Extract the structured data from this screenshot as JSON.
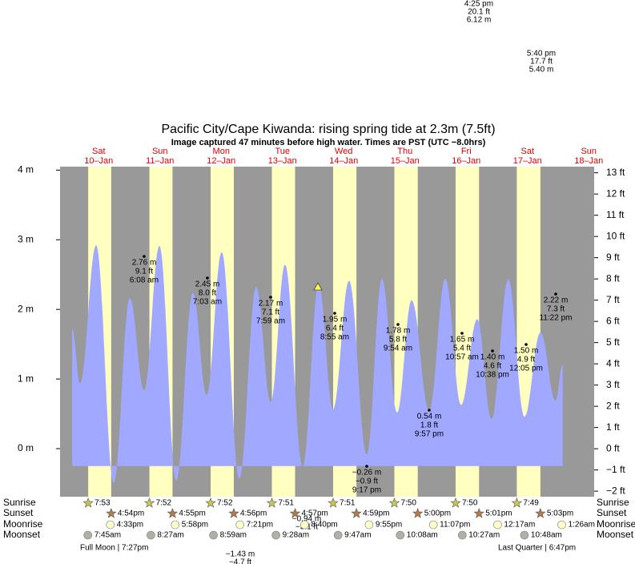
{
  "chart_data": {
    "type": "tide",
    "title": "Pacific City/Cape Kiwanda: rising  spring tide at 2.3m (7.5ft)",
    "subtitle": "Image captured 47 minutes before high water. Times are PST (UTC −8.0hrs)",
    "days": [
      "Sat",
      "Sun",
      "Mon",
      "Tue",
      "Wed",
      "Thu",
      "Fri",
      "Sat",
      "Sun"
    ],
    "dates": [
      "10–Jan",
      "11–Jan",
      "12–Jan",
      "13–Jan",
      "14–Jan",
      "15–Jan",
      "16–Jan",
      "17–Jan",
      "18–Jan"
    ],
    "ylim": [
      -0.69,
      4.05
    ],
    "yticks": [
      {
        "value": 4,
        "label": "4 m"
      },
      {
        "value": 3,
        "label": "3 m"
      },
      {
        "value": 2,
        "label": "2 m"
      },
      {
        "value": 1,
        "label": "1 m"
      },
      {
        "value": 0,
        "label": "0 m"
      }
    ],
    "y2lim": [
      -2.26,
      13.29
    ],
    "y2ticks": [
      {
        "value": 13,
        "label": "13 ft"
      },
      {
        "value": 12,
        "label": "12 ft"
      },
      {
        "value": 11,
        "label": "11 ft"
      },
      {
        "value": 10,
        "label": "10 ft"
      },
      {
        "value": 9,
        "label": "9 ft"
      },
      {
        "value": 8,
        "label": "8 ft"
      },
      {
        "value": 7,
        "label": "7 ft"
      },
      {
        "value": 6,
        "label": "6 ft"
      },
      {
        "value": 5,
        "label": "5 ft"
      },
      {
        "value": 4,
        "label": "4 ft"
      },
      {
        "value": 3,
        "label": "3 ft"
      },
      {
        "value": 2,
        "label": "2 ft"
      },
      {
        "value": 1,
        "label": "1 ft"
      },
      {
        "value": 0,
        "label": "0 ft"
      },
      {
        "value": -1,
        "label": "−1 ft"
      },
      {
        "value": -2,
        "label": "−2 ft"
      }
    ],
    "tide_curve": {
      "color": "#a0a8ff",
      "hours": [
        1.6,
        4.7,
        11.0,
        17.9,
        24.2,
        29.8,
        35.8,
        42.4,
        48.9,
        54.3,
        60.2,
        67.1,
        73.7,
        79.4,
        85.0,
        91.9,
        98.2,
        103.8,
        110.1,
        117.0,
        123.0,
        128.9,
        134.6,
        141.5,
        147.8,
        154.0,
        160.3,
        165.9,
        172.5,
        178.8,
        185.1,
        191.0,
        193.8
      ],
      "heights": [
        1.72,
        0.94,
        2.92,
        -0.49,
        2.16,
        0.84,
        2.91,
        -0.46,
        2.24,
        0.77,
        2.82,
        -0.43,
        2.32,
        0.67,
        2.64,
        -0.25,
        2.36,
        0.57,
        2.41,
        -0.08,
        2.44,
        0.52,
        2.13,
        0.55,
        2.44,
        0.63,
        1.86,
        0.43,
        2.43,
        0.46,
        1.67,
        0.69,
        1.21
      ]
    },
    "tide_labels": [
      {
        "m": "2.76 m",
        "ft": "9.1 ft",
        "time": "6:08 am"
      },
      {
        "m": "2.45 m",
        "ft": "8.0 ft",
        "time": "7:03 am"
      },
      {
        "m": "2.17 m",
        "ft": "7.1 ft",
        "time": "7:59 am"
      },
      {
        "m": "1.95 m",
        "ft": "6.4 ft",
        "time": "8:55 am"
      },
      {
        "m": "1.78 m",
        "ft": "5.8 ft",
        "time": "9:54 am"
      },
      {
        "m": "1.65 m",
        "ft": "5.4 ft",
        "time": "10:57 am"
      },
      {
        "m": "1.40 m",
        "ft": "4.6 ft",
        "time": "10:38 pm"
      },
      {
        "m": "1.50 m",
        "ft": "4.9 ft",
        "time": "12:05 pm"
      },
      {
        "m": "2.22 m",
        "ft": "7.3 ft",
        "time": "11:22 pm"
      },
      {
        "m": "0.54 m",
        "ft": "1.8 ft",
        "time": "9:57 pm"
      },
      {
        "m": "−0.26 m",
        "ft": "−0.9 ft",
        "time": "9:17 pm"
      }
    ],
    "offchart_labels": [
      {
        "time": "4:25 pm",
        "ft": "20.1 ft",
        "m": "6.12 m"
      },
      {
        "time": "5:40 pm",
        "ft": "17.7 ft",
        "m": "5.40 m"
      }
    ],
    "low_labels": [
      {
        "m": "−1.43 m",
        "ft": "−4.7 ft"
      },
      {
        "m": "−0.94 m",
        "ft": "−3.1 ft"
      }
    ],
    "row_labels": [
      "Sunrise",
      "Sunset",
      "Moonrise",
      "Moonset"
    ],
    "sunrise": [
      "7:53",
      "7:52",
      "7:52",
      "7:51",
      "7:51",
      "7:50",
      "7:50",
      "7:49",
      null
    ],
    "sunset": [
      "4:54pm",
      "4:55pm",
      "4:56pm",
      "4:57pm",
      "4:59pm",
      "5:00pm",
      "5:01pm",
      "5:03pm",
      null
    ],
    "moonrise": [
      "4:33pm",
      "5:58pm",
      "7:21pm",
      "8:40pm",
      "9:55pm",
      "11:07pm",
      null,
      "12:17am",
      "1:26am"
    ],
    "moonset": [
      "7:45am",
      "8:27am",
      "8:59am",
      "9:28am",
      "9:47am",
      "10:08am",
      "10:27am",
      "10:48am",
      null
    ],
    "moon_phases": [
      "Full Moon | 7:27pm",
      "Last Quarter | 6:47pm"
    ]
  }
}
